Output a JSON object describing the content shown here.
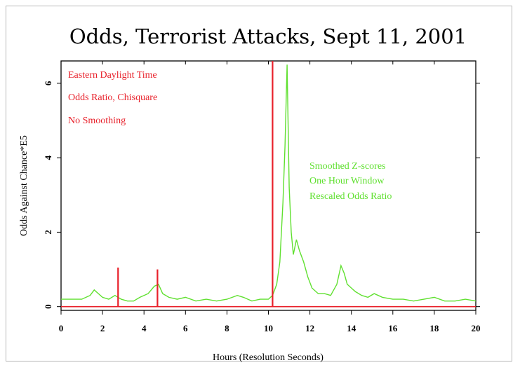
{
  "chart_data": {
    "type": "line",
    "title": "Odds, Terrorist Attacks, Sept 11, 2001",
    "xlabel": "Hours (Resolution Seconds)",
    "ylabel": "Odds Against Chance*E5",
    "xlim": [
      0,
      20
    ],
    "ylim": [
      -0.1,
      6.6
    ],
    "x_ticks": [
      0,
      2,
      4,
      6,
      8,
      10,
      12,
      14,
      16,
      18,
      20
    ],
    "y_ticks": [
      0,
      2,
      4,
      6
    ],
    "grid": false,
    "annotations_red": [
      "Eastern Daylight Time",
      "Odds Ratio, Chisquare",
      "No Smoothing"
    ],
    "annotations_green": [
      "Smoothed Z-scores",
      "One Hour Window",
      "Rescaled Odds Ratio"
    ],
    "colors": {
      "red": "#e8202a",
      "green": "#60e030"
    },
    "series": [
      {
        "x": [
          0,
          0.5,
          1.0,
          1.4,
          1.6,
          1.8,
          2.0,
          2.3,
          2.6,
          2.9,
          3.2,
          3.5,
          3.8,
          4.2,
          4.5,
          4.7,
          4.9,
          5.2,
          5.6,
          6.0,
          6.5,
          7.0,
          7.5,
          8.0,
          8.5,
          8.8,
          9.2,
          9.6,
          10.0,
          10.2,
          10.4,
          10.55,
          10.7,
          10.8,
          10.9,
          11.0,
          11.1,
          11.2,
          11.35,
          11.5,
          11.7,
          11.9,
          12.1,
          12.4,
          12.7,
          13.0,
          13.3,
          13.5,
          13.65,
          13.8,
          14.0,
          14.2,
          14.5,
          14.8,
          15.1,
          15.5,
          16.0,
          16.5,
          17.0,
          17.5,
          18.0,
          18.5,
          19.0,
          19.5,
          20.0
        ],
        "y": [
          0.2,
          0.2,
          0.2,
          0.3,
          0.45,
          0.35,
          0.25,
          0.2,
          0.3,
          0.2,
          0.15,
          0.15,
          0.25,
          0.35,
          0.55,
          0.6,
          0.35,
          0.25,
          0.2,
          0.25,
          0.15,
          0.2,
          0.15,
          0.2,
          0.3,
          0.25,
          0.15,
          0.2,
          0.2,
          0.3,
          0.6,
          1.2,
          2.8,
          4.3,
          6.5,
          3.2,
          2.0,
          1.4,
          1.8,
          1.5,
          1.2,
          0.8,
          0.5,
          0.35,
          0.35,
          0.3,
          0.6,
          1.1,
          0.9,
          0.6,
          0.5,
          0.4,
          0.3,
          0.25,
          0.35,
          0.25,
          0.2,
          0.2,
          0.15,
          0.2,
          0.25,
          0.15,
          0.15,
          0.2,
          0.15
        ]
      },
      {
        "spikes": [
          {
            "x": 2.75,
            "y": 1.05
          },
          {
            "x": 4.65,
            "y": 1.0
          },
          {
            "x": 10.2,
            "y": 6.6
          }
        ],
        "baseline": 0.0
      }
    ]
  }
}
